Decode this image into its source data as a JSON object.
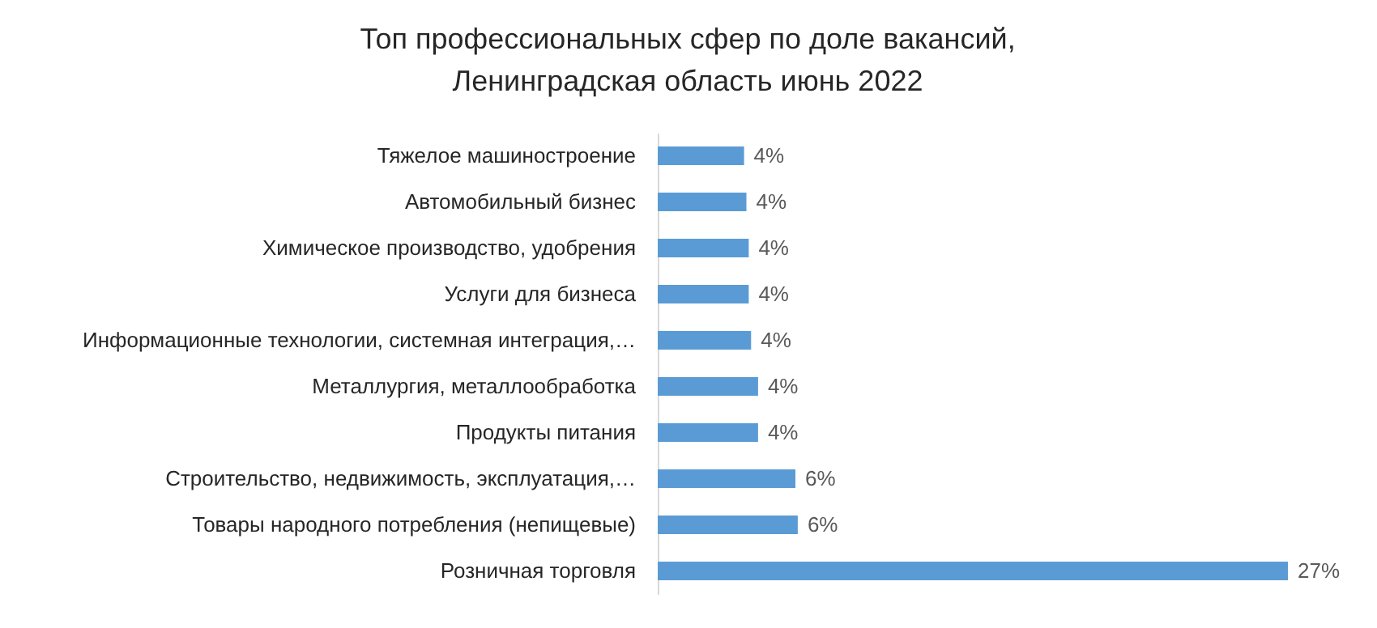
{
  "chart_data": {
    "type": "bar",
    "orientation": "horizontal",
    "title": "Топ профессиональных сфер по доле вакансий,\nЛенинградская область июнь 2022",
    "categories": [
      "Тяжелое машиностроение",
      "Автомобильный бизнес",
      "Химическое производство, удобрения",
      "Услуги для бизнеса",
      "Информационные технологии, системная интеграция,…",
      "Металлургия, металлообработка",
      "Продукты питания",
      "Строительство, недвижимость, эксплуатация,…",
      "Товары народного потребления (непищевые)",
      "Розничная торговля"
    ],
    "values": [
      3.7,
      3.8,
      3.9,
      3.9,
      4.0,
      4.3,
      4.3,
      5.9,
      6.0,
      27
    ],
    "value_labels": [
      "4%",
      "4%",
      "4%",
      "4%",
      "4%",
      "4%",
      "4%",
      "6%",
      "6%",
      "27%"
    ],
    "color": "#5b9bd5"
  }
}
